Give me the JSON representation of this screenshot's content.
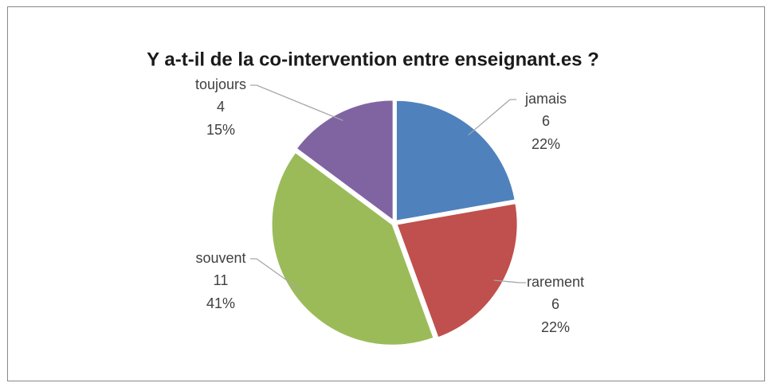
{
  "chart_data": {
    "type": "pie",
    "title": "Y a-t-il de la co-intervention entre enseignant.es ?",
    "categories": [
      "jamais",
      "rarement",
      "souvent",
      "toujours"
    ],
    "values": [
      6,
      6,
      11,
      4
    ],
    "percent_labels": [
      "22%",
      "22%",
      "41%",
      "15%"
    ],
    "colors": [
      "#4f81bd",
      "#c0504d",
      "#9bbb59",
      "#8064a2"
    ]
  }
}
